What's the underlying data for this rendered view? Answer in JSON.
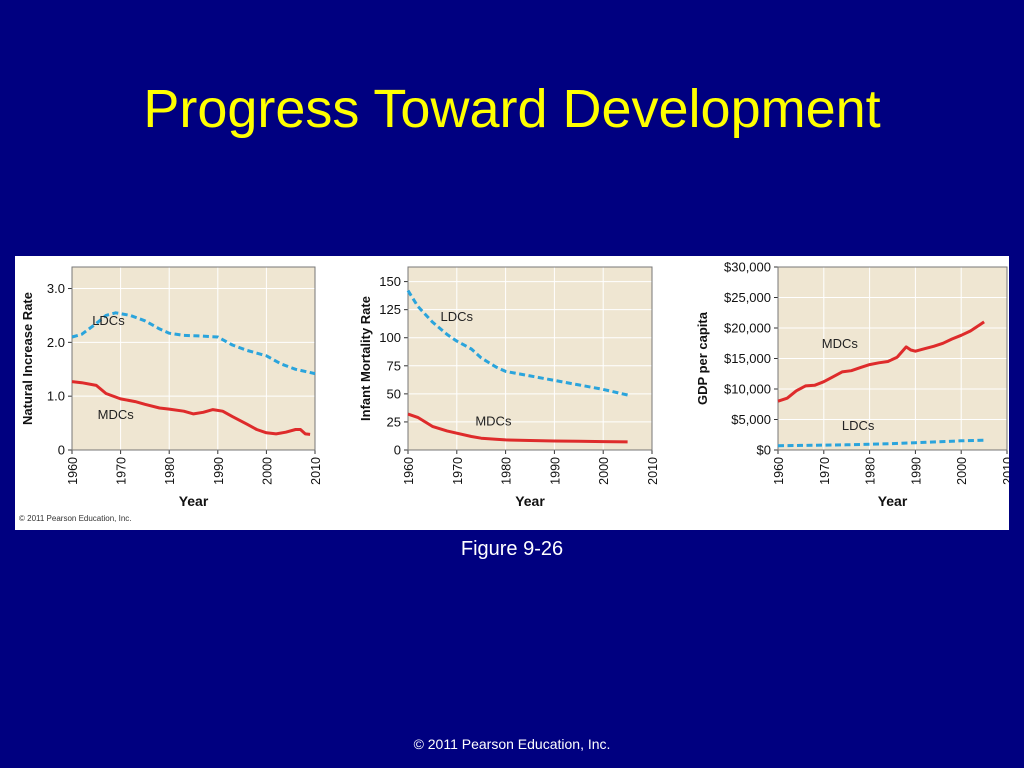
{
  "slide": {
    "title": "Progress Toward Development",
    "caption": "Figure 9-26",
    "footer": "© 2011 Pearson Education, Inc.",
    "panel_credit": "© 2011 Pearson Education, Inc."
  },
  "colors": {
    "background": "#000080",
    "title": "#ffff00",
    "plot_bg": "#efe6d2",
    "ldc_line": "#2aa4dc",
    "mdc_line": "#de2b2b"
  },
  "chart_data": [
    {
      "type": "line",
      "xlabel": "Year",
      "ylabel": "Natural Increase Rate",
      "xlim": [
        1960,
        2010
      ],
      "ylim": [
        0,
        3.4
      ],
      "xticks": [
        "1960",
        "1970",
        "1980",
        "1990",
        "2000",
        "2010"
      ],
      "yticks": [
        "0",
        "1.0",
        "2.0",
        "3.0"
      ],
      "ytick_values": [
        0,
        1,
        2,
        3
      ],
      "grid": true,
      "series": [
        {
          "name": "LDCs",
          "style": "dashed",
          "x": [
            1960,
            1962,
            1965,
            1967,
            1969,
            1972,
            1975,
            1978,
            1980,
            1983,
            1986,
            1990,
            1993,
            1996,
            2000,
            2003,
            2006,
            2010
          ],
          "y": [
            2.1,
            2.15,
            2.35,
            2.5,
            2.55,
            2.5,
            2.4,
            2.25,
            2.17,
            2.13,
            2.12,
            2.1,
            1.95,
            1.85,
            1.75,
            1.6,
            1.5,
            1.42
          ],
          "label_x": 1967.5,
          "label_y": 2.32
        },
        {
          "name": "MDCs",
          "style": "solid",
          "x": [
            1960,
            1962,
            1965,
            1967,
            1970,
            1973,
            1975,
            1978,
            1980,
            1983,
            1985,
            1987,
            1989,
            1991,
            1993,
            1996,
            1998,
            2000,
            2002,
            2004,
            2006,
            2007,
            2008,
            2009
          ],
          "y": [
            1.27,
            1.25,
            1.2,
            1.05,
            0.95,
            0.9,
            0.85,
            0.78,
            0.76,
            0.72,
            0.67,
            0.7,
            0.75,
            0.72,
            0.62,
            0.48,
            0.38,
            0.32,
            0.3,
            0.33,
            0.38,
            0.38,
            0.3,
            0.29
          ],
          "label_x": 1969,
          "label_y": 0.58
        }
      ]
    },
    {
      "type": "line",
      "xlabel": "Year",
      "ylabel": "Infant Mortality Rate",
      "xlim": [
        1960,
        2010
      ],
      "ylim": [
        0,
        163
      ],
      "xticks": [
        "1960",
        "1970",
        "1980",
        "1990",
        "2000",
        "2010"
      ],
      "yticks": [
        "0",
        "25",
        "50",
        "75",
        "100",
        "125",
        "150"
      ],
      "ytick_values": [
        0,
        25,
        50,
        75,
        100,
        125,
        150
      ],
      "grid": true,
      "series": [
        {
          "name": "LDCs",
          "style": "dashed",
          "x": [
            1960,
            1962,
            1965,
            1968,
            1970,
            1973,
            1975,
            1978,
            1980,
            1985,
            1990,
            1995,
            2000,
            2005
          ],
          "y": [
            142,
            128,
            114,
            103,
            97,
            90,
            82,
            74,
            70,
            66,
            62,
            58,
            54,
            49
          ],
          "label_x": 1970,
          "label_y": 115
        },
        {
          "name": "MDCs",
          "style": "solid",
          "x": [
            1960,
            1962,
            1965,
            1968,
            1970,
            1973,
            1975,
            1978,
            1980,
            1985,
            1990,
            1995,
            2000,
            2005
          ],
          "y": [
            32,
            29,
            21,
            17,
            15,
            12,
            10.5,
            9.5,
            9,
            8.5,
            8,
            7.8,
            7.5,
            7.2
          ],
          "label_x": 1977.5,
          "label_y": 22
        }
      ]
    },
    {
      "type": "line",
      "xlabel": "Year",
      "ylabel": "GDP per capita",
      "xlim": [
        1960,
        2010
      ],
      "ylim": [
        0,
        30000
      ],
      "xticks": [
        "1960",
        "1970",
        "1980",
        "1990",
        "2000",
        "2010"
      ],
      "yticks": [
        "$0",
        "$5,000",
        "$10,000",
        "$15,000",
        "$20,000",
        "$25,000",
        "$30,000"
      ],
      "ytick_values": [
        0,
        5000,
        10000,
        15000,
        20000,
        25000,
        30000
      ],
      "grid": true,
      "series": [
        {
          "name": "MDCs",
          "style": "solid",
          "x": [
            1960,
            1962,
            1964,
            1966,
            1968,
            1970,
            1972,
            1974,
            1976,
            1978,
            1980,
            1982,
            1984,
            1986,
            1988,
            1989,
            1990,
            1992,
            1994,
            1996,
            1998,
            2000,
            2002,
            2004,
            2005
          ],
          "y": [
            8000,
            8500,
            9700,
            10500,
            10600,
            11200,
            12000,
            12800,
            13000,
            13500,
            14000,
            14300,
            14500,
            15200,
            16900,
            16400,
            16200,
            16600,
            17000,
            17500,
            18200,
            18800,
            19500,
            20500,
            21000
          ],
          "label_x": 1973.5,
          "label_y": 16700
        },
        {
          "name": "LDCs",
          "style": "dashed",
          "x": [
            1960,
            1965,
            1970,
            1975,
            1980,
            1985,
            1990,
            1995,
            2000,
            2005
          ],
          "y": [
            700,
            750,
            800,
            850,
            950,
            1050,
            1200,
            1350,
            1500,
            1600
          ],
          "label_x": 1977.5,
          "label_y": 3300
        }
      ]
    }
  ]
}
